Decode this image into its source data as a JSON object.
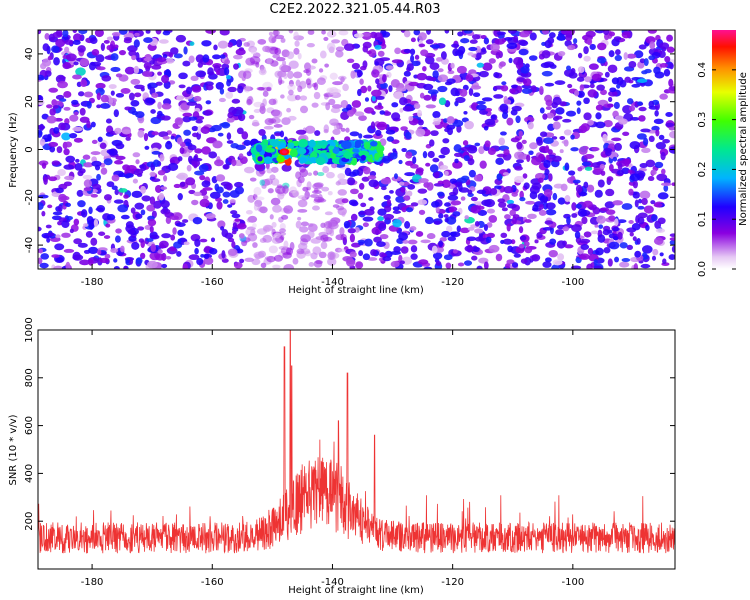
{
  "title": "C2E2.2022.321.05.44.R03",
  "chart_data": [
    {
      "type": "heatmap",
      "title": "C2E2.2022.321.05.44.R03",
      "xlabel": "Height of straight line (km)",
      "ylabel": "Frequency (Hz)",
      "xlim": [
        -189,
        -83
      ],
      "ylim": [
        -50,
        50
      ],
      "x_ticks": [
        "-180",
        "-160",
        "-140",
        "-120",
        "-100"
      ],
      "y_ticks": [
        "-40",
        "-20",
        "0",
        "20",
        "40"
      ],
      "colorbar": {
        "label": "Normalized spectral amplitude",
        "range": [
          0,
          0.48
        ],
        "ticks": [
          "0.0",
          "0.1",
          "0.2",
          "0.3",
          "0.4"
        ],
        "colormap": "rainbow: white-violet-blue-cyan-green-yellow-red-pink"
      },
      "description_values": {
        "background_amplitude": [
          0.0,
          0.12
        ],
        "signal_band_x": [
          -153,
          -132
        ],
        "signal_band_y": [
          -5,
          3
        ],
        "signal_peak_amplitude": 0.45,
        "signal_peak_x": -148,
        "quiet_column_x": [
          -155,
          -138
        ]
      },
      "grid": false
    },
    {
      "type": "line",
      "xlabel": "Height of straight line (km)",
      "ylabel": "SNR (10 * v/v)",
      "xlim": [
        -189,
        -83
      ],
      "ylim": [
        0,
        1000
      ],
      "x_ticks": [
        "-180",
        "-160",
        "-140",
        "-120",
        "-100"
      ],
      "y_ticks": [
        "200",
        "400",
        "600",
        "800",
        "1000"
      ],
      "series": [
        {
          "color": "#ee3333",
          "baseline_mean": 130,
          "baseline_noise": [
            20,
            300
          ],
          "peaks": [
            {
              "x": -148,
              "value": 930
            },
            {
              "x": -147,
              "value": 1000
            },
            {
              "x": -146.8,
              "value": 850
            },
            {
              "x": -137.5,
              "value": 820
            },
            {
              "x": -139,
              "value": 620
            },
            {
              "x": -133,
              "value": 560
            }
          ]
        }
      ],
      "grid": false
    }
  ]
}
